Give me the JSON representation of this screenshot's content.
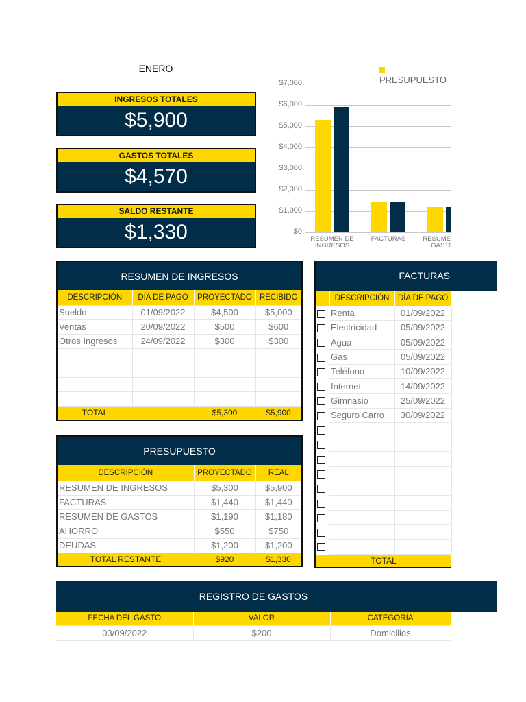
{
  "month": "ENERO",
  "kpis": [
    {
      "label": "INGRESOS TOTALES",
      "value": "$5,900"
    },
    {
      "label": "GASTOS TOTALES",
      "value": "$4,570"
    },
    {
      "label": "SALDO RESTANTE",
      "value": "$1,330"
    }
  ],
  "colors": {
    "yellow": "#ffd700",
    "navy": "#022d48"
  },
  "chart_data": {
    "type": "bar",
    "legend": [
      "PRESUPUESTO"
    ],
    "legend_position": "top-right",
    "categories": [
      "RESUMEN DE INGRESOS",
      "FACTURAS",
      "RESUMEN DE GASTOS"
    ],
    "series": [
      {
        "values": [
          5300,
          1440,
          1190
        ],
        "color": "#ffd700"
      },
      {
        "values": [
          5900,
          1440,
          1180
        ],
        "color": "#022d48"
      }
    ],
    "ylim": [
      0,
      7000
    ],
    "yticks": [
      "$0",
      "$1,000",
      "$2,000",
      "$3,000",
      "$4,000",
      "$5,000",
      "$6,000",
      "$7,000"
    ],
    "grid": true
  },
  "ingresos": {
    "title": "RESUMEN DE INGRESOS",
    "headers": [
      "DESCRIPCIÓN",
      "DÍA DE PAGO",
      "PROYECTADO",
      "RECIBIDO"
    ],
    "rows": [
      [
        "Sueldo",
        "01/09/2022",
        "$4,500",
        "$5,000"
      ],
      [
        "Ventas",
        "20/09/2022",
        "$500",
        "$600"
      ],
      [
        "Otros Ingresos",
        "24/09/2022",
        "$300",
        "$300"
      ],
      [
        "",
        "",
        "",
        ""
      ],
      [
        "",
        "",
        "",
        ""
      ],
      [
        "",
        "",
        "",
        ""
      ],
      [
        "",
        "",
        "",
        ""
      ]
    ],
    "total": [
      "TOTAL",
      "",
      "$5,300",
      "$5,900"
    ]
  },
  "facturas": {
    "title": "FACTURAS",
    "headers": [
      "",
      "DESCRIPCIÓN",
      "DÍA DE PAGO"
    ],
    "rows": [
      [
        "Renta",
        "01/09/2022"
      ],
      [
        "Electricidad",
        "05/09/2022"
      ],
      [
        "Agua",
        "05/09/2022"
      ],
      [
        "Gas",
        "05/09/2022"
      ],
      [
        "Teléfono",
        "10/09/2022"
      ],
      [
        "Internet",
        "14/09/2022"
      ],
      [
        "Gimnasio",
        "25/09/2022"
      ],
      [
        "Seguro Carro",
        "30/09/2022"
      ],
      [
        "",
        ""
      ],
      [
        "",
        ""
      ],
      [
        "",
        ""
      ],
      [
        "",
        ""
      ],
      [
        "",
        ""
      ],
      [
        "",
        ""
      ],
      [
        "",
        ""
      ],
      [
        "",
        ""
      ],
      [
        "",
        ""
      ]
    ],
    "total": "TOTAL"
  },
  "presupuesto": {
    "title": "PRESUPUESTO",
    "headers": [
      "DESCRIPCIÓN",
      "PROYECTADO",
      "REAL"
    ],
    "rows": [
      [
        "RESUMEN DE INGRESOS",
        "$5,300",
        "$5,900"
      ],
      [
        "FACTURAS",
        "$1,440",
        "$1,440"
      ],
      [
        "RESUMEN DE GASTOS",
        "$1,190",
        "$1,180"
      ],
      [
        "AHORRO",
        "$550",
        "$750"
      ],
      [
        "DEUDAS",
        "$1,200",
        "$1,200"
      ]
    ],
    "total": [
      "TOTAL RESTANTE",
      "$920",
      "$1,330"
    ]
  },
  "registro": {
    "title": "REGISTRO DE GASTOS",
    "headers": [
      "FECHA DEL GASTO",
      "VALOR",
      "CATEGORÍA"
    ],
    "rows": [
      [
        "03/09/2022",
        "$200",
        "Domicilios"
      ]
    ]
  }
}
